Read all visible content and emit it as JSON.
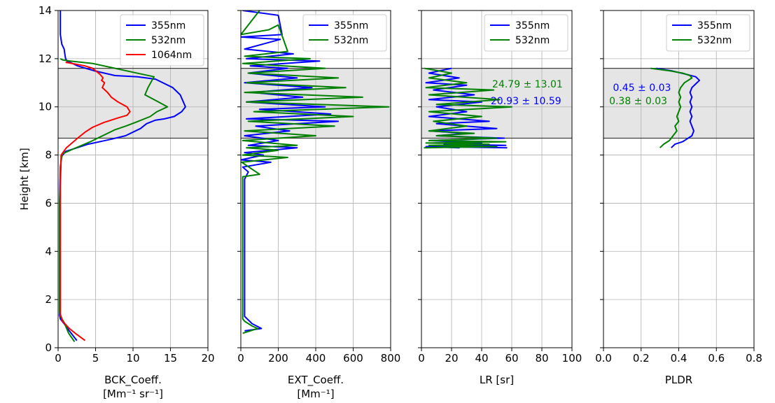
{
  "chart_data": [
    {
      "type": "line",
      "xlabel": "BCK_Coeff.",
      "xlabel_unit": "[Mm⁻¹ sr⁻¹]",
      "ylabel": "Height [km]",
      "xlim": [
        0,
        20
      ],
      "ylim": [
        0,
        14
      ],
      "xticks": [
        "0",
        "5",
        "10",
        "15",
        "20"
      ],
      "yticks": [
        "0",
        "2",
        "4",
        "6",
        "8",
        "10",
        "12",
        "14"
      ],
      "grid": true,
      "legend_position": "top-right",
      "shaded_layer": [
        8.7,
        11.6
      ],
      "series": [
        {
          "name": "355nm",
          "color": "#0000ff",
          "x": [
            0.3,
            0.3,
            0.5,
            0.8,
            0.9,
            1.0,
            1.2,
            1.6,
            2.6,
            4.8,
            7.6,
            10.6,
            13.0,
            15.3,
            16.3,
            17.0,
            16.5,
            15.5,
            14.2,
            13.0,
            11.8,
            11.0,
            9.0,
            7.0,
            4.0,
            1.0,
            0.5,
            0.3,
            0.2,
            0.2,
            0.2,
            0.2,
            0.2,
            0.3,
            0.8,
            1.5,
            2.5
          ],
          "y": [
            14.0,
            13.0,
            12.6,
            12.4,
            12.2,
            12.0,
            11.9,
            11.85,
            11.7,
            11.5,
            11.3,
            11.25,
            11.15,
            10.8,
            10.5,
            10.0,
            9.8,
            9.6,
            9.5,
            9.45,
            9.3,
            9.1,
            8.8,
            8.65,
            8.45,
            8.15,
            7.95,
            7.5,
            6.0,
            4.0,
            2.0,
            1.5,
            1.35,
            1.2,
            1.0,
            0.7,
            0.3
          ]
        },
        {
          "name": "532nm",
          "color": "#008000",
          "x": [
            0.3,
            0.6,
            1.6,
            4.6,
            7.6,
            9.8,
            12.8,
            12.0,
            11.6,
            13.4,
            14.6,
            13.2,
            12.3,
            10.3,
            9.0,
            7.6,
            6.6,
            5.6,
            4.3,
            2.0,
            0.6,
            0.4,
            0.2,
            0.2,
            0.2,
            0.2,
            0.3,
            0.8,
            1.4,
            2.2
          ],
          "y": [
            12.0,
            11.95,
            11.9,
            11.8,
            11.6,
            11.45,
            11.25,
            10.8,
            10.5,
            10.2,
            10.0,
            9.8,
            9.6,
            9.35,
            9.2,
            9.05,
            8.9,
            8.75,
            8.55,
            8.25,
            8.05,
            7.8,
            6.0,
            4.0,
            2.0,
            1.5,
            1.3,
            1.05,
            0.6,
            0.25
          ]
        },
        {
          "name": "1064nm",
          "color": "#ff0000",
          "x": [
            1.0,
            3.6,
            4.6,
            5.6,
            6.0,
            5.8,
            6.2,
            5.9,
            6.6,
            7.1,
            8.0,
            9.2,
            9.6,
            9.2,
            8.1,
            6.1,
            4.6,
            3.6,
            2.6,
            1.1,
            0.4,
            0.3,
            0.3,
            0.3,
            0.3,
            0.6,
            1.5,
            2.5,
            3.6
          ],
          "y": [
            11.85,
            11.7,
            11.6,
            11.35,
            11.2,
            11.1,
            11.0,
            10.8,
            10.6,
            10.4,
            10.2,
            10.0,
            9.8,
            9.65,
            9.55,
            9.35,
            9.15,
            8.95,
            8.7,
            8.3,
            8.0,
            7.0,
            4.0,
            2.0,
            1.4,
            1.1,
            0.8,
            0.55,
            0.3
          ]
        }
      ]
    },
    {
      "type": "line",
      "xlabel": "EXT_Coeff.",
      "xlabel_unit": "[Mm⁻¹]",
      "xlim": [
        0,
        800
      ],
      "ylim": [
        0,
        14
      ],
      "xticks": [
        "0",
        "200",
        "400",
        "600",
        "800"
      ],
      "grid": true,
      "legend_position": "top-right",
      "shaded_layer": [
        8.7,
        11.6
      ],
      "series": [
        {
          "name": "355nm",
          "color": "#0000ff",
          "x": [
            10,
            200,
            220,
            0,
            210,
            20,
            280,
            30,
            420,
            50,
            250,
            40,
            300,
            20,
            380,
            60,
            330,
            30,
            450,
            100,
            480,
            30,
            520,
            80,
            260,
            20,
            200,
            40,
            300,
            20,
            120,
            0,
            160,
            10,
            40,
            20,
            20,
            20,
            20,
            20,
            20,
            60,
            110,
            20
          ],
          "y": [
            14.0,
            13.8,
            13.0,
            12.9,
            12.8,
            12.4,
            12.2,
            12.0,
            11.9,
            11.7,
            11.6,
            11.4,
            11.2,
            11.0,
            10.8,
            10.6,
            10.4,
            10.2,
            10.0,
            9.9,
            9.7,
            9.5,
            9.4,
            9.2,
            9.0,
            8.8,
            8.6,
            8.4,
            8.3,
            8.1,
            8.0,
            7.8,
            7.7,
            7.5,
            7.3,
            7.0,
            5.0,
            3.0,
            1.5,
            1.4,
            1.3,
            1.0,
            0.8,
            0.7
          ]
        },
        {
          "name": "532nm",
          "color": "#008000",
          "x": [
            100,
            0,
            150,
            200,
            250,
            20,
            370,
            10,
            450,
            40,
            520,
            30,
            560,
            20,
            650,
            30,
            790,
            70,
            600,
            40,
            500,
            20,
            400,
            10,
            300,
            30,
            200,
            10,
            250,
            5,
            100,
            10,
            10,
            10,
            10,
            10,
            20,
            60,
            90,
            10
          ],
          "y": [
            14.0,
            13.0,
            13.2,
            13.4,
            12.3,
            12.1,
            12.0,
            11.8,
            11.6,
            11.4,
            11.2,
            11.0,
            10.8,
            10.6,
            10.4,
            10.2,
            10.0,
            9.8,
            9.6,
            9.4,
            9.2,
            9.0,
            8.8,
            8.6,
            8.4,
            8.3,
            8.2,
            8.0,
            7.9,
            7.7,
            7.2,
            7.1,
            4.0,
            2.0,
            1.4,
            1.2,
            1.1,
            0.9,
            0.8,
            0.6
          ]
        }
      ]
    },
    {
      "type": "line",
      "xlabel": "LR [sr]",
      "xlim": [
        0,
        100
      ],
      "ylim": [
        0,
        14
      ],
      "xticks": [
        "0",
        "20",
        "40",
        "60",
        "80",
        "100"
      ],
      "grid": true,
      "legend_position": "top-right",
      "shaded_layer": [
        8.7,
        11.6
      ],
      "annotations": [
        {
          "text": "24.79 ± 13.01",
          "color": "#008000",
          "x": 47,
          "y": 10.95
        },
        {
          "text": "20.93 ± 10.59",
          "color": "#0000ff",
          "x": 46,
          "y": 10.25
        }
      ],
      "series": [
        {
          "name": "355nm",
          "color": "#0000ff",
          "x": [
            20,
            5,
            25,
            3,
            30,
            8,
            35,
            5,
            40,
            10,
            30,
            5,
            45,
            10,
            50,
            5,
            30,
            10,
            55,
            5,
            40,
            15,
            56,
            3,
            25,
            10,
            57
          ],
          "y": [
            11.6,
            11.4,
            11.2,
            11.0,
            10.9,
            10.7,
            10.5,
            10.3,
            10.2,
            10.0,
            9.8,
            9.6,
            9.4,
            9.3,
            9.1,
            9.0,
            8.9,
            8.8,
            8.7,
            8.6,
            8.5,
            8.45,
            8.4,
            8.35,
            8.3,
            8.35,
            8.3
          ]
        },
        {
          "name": "532nm",
          "color": "#008000",
          "x": [
            2,
            20,
            5,
            30,
            3,
            48,
            5,
            52,
            10,
            60,
            5,
            40,
            8,
            30,
            5,
            35,
            10,
            50,
            5,
            56,
            3,
            45,
            5,
            50,
            2,
            40
          ],
          "y": [
            11.6,
            11.4,
            11.2,
            11.0,
            10.8,
            10.7,
            10.5,
            10.3,
            10.1,
            10.0,
            9.8,
            9.6,
            9.4,
            9.2,
            9.0,
            8.9,
            8.8,
            8.7,
            8.6,
            8.55,
            8.5,
            8.45,
            8.4,
            8.35,
            8.3,
            8.35
          ]
        }
      ]
    },
    {
      "type": "line",
      "xlabel": "PLDR",
      "xlim": [
        0,
        0.8
      ],
      "ylim": [
        0,
        14
      ],
      "xticks": [
        "0.0",
        "0.2",
        "0.4",
        "0.6",
        "0.8"
      ],
      "grid": true,
      "legend_position": "top-right",
      "shaded_layer": [
        8.7,
        11.6
      ],
      "annotations": [
        {
          "text": "0.45 ± 0.03",
          "color": "#0000ff",
          "x": 0.05,
          "y": 10.8
        },
        {
          "text": "0.38 ± 0.03",
          "color": "#008000",
          "x": 0.03,
          "y": 10.25
        }
      ],
      "series": [
        {
          "name": "355nm",
          "color": "#0000ff",
          "x": [
            0.28,
            0.36,
            0.44,
            0.49,
            0.51,
            0.49,
            0.47,
            0.46,
            0.47,
            0.46,
            0.47,
            0.46,
            0.47,
            0.46,
            0.47,
            0.48,
            0.47,
            0.44,
            0.42,
            0.38,
            0.36
          ],
          "y": [
            11.6,
            11.5,
            11.35,
            11.25,
            11.1,
            10.95,
            10.8,
            10.6,
            10.4,
            10.2,
            10.0,
            9.8,
            9.6,
            9.4,
            9.2,
            9.0,
            8.8,
            8.65,
            8.55,
            8.45,
            8.3
          ]
        },
        {
          "name": "532nm",
          "color": "#008000",
          "x": [
            0.25,
            0.35,
            0.42,
            0.46,
            0.47,
            0.43,
            0.41,
            0.4,
            0.41,
            0.4,
            0.41,
            0.4,
            0.39,
            0.4,
            0.38,
            0.39,
            0.37,
            0.36,
            0.35,
            0.32,
            0.3
          ],
          "y": [
            11.6,
            11.5,
            11.4,
            11.3,
            11.2,
            11.0,
            10.8,
            10.6,
            10.4,
            10.2,
            10.0,
            9.8,
            9.6,
            9.4,
            9.2,
            9.0,
            8.8,
            8.7,
            8.6,
            8.45,
            8.3
          ]
        }
      ]
    }
  ]
}
